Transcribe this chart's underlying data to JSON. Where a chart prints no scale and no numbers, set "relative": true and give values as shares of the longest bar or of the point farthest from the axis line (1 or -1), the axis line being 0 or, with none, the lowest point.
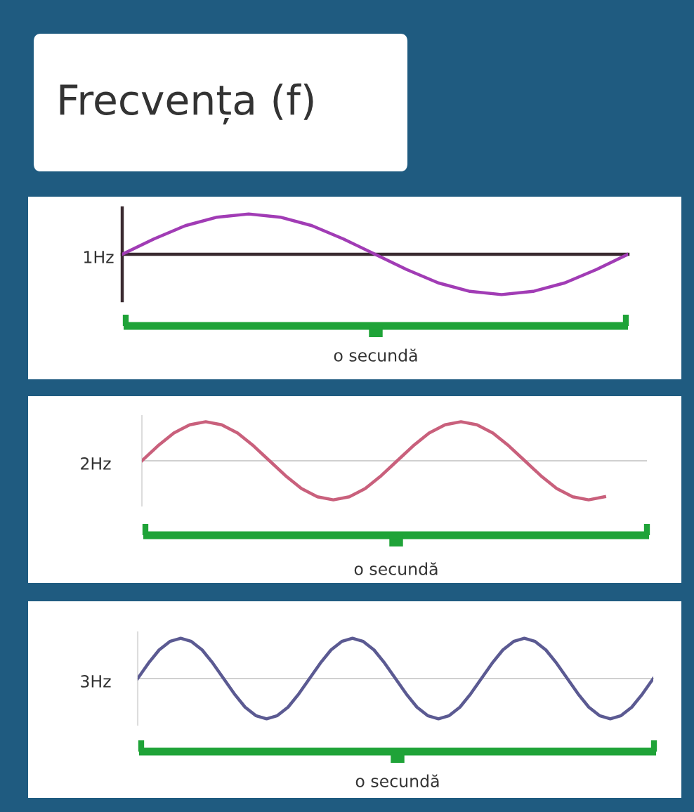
{
  "chart_data": [
    {
      "type": "line",
      "title": "Frecvența (f)",
      "ylabel": "1Hz",
      "relative": true,
      "annotations": [
        "o secundă"
      ],
      "categories": [
        null,
        null,
        null,
        null,
        null,
        null,
        null,
        null,
        null,
        null,
        null,
        null,
        null,
        null,
        null,
        null,
        null
      ],
      "series": [
        {
          "color": "#a13cb5",
          "values": [
            0,
            0.38,
            0.71,
            0.92,
            1,
            0.92,
            0.71,
            0.38,
            0,
            -0.38,
            -0.71,
            -0.92,
            -1,
            -0.92,
            -0.71,
            -0.38,
            0
          ]
        }
      ]
    },
    {
      "type": "line",
      "ylabel": "2Hz",
      "relative": true,
      "annotations": [
        "o secundă"
      ],
      "categories": [
        null,
        null,
        null,
        null,
        null,
        null,
        null,
        null,
        null,
        null,
        null,
        null,
        null,
        null,
        null,
        null,
        null,
        null,
        null,
        null,
        null,
        null,
        null,
        null,
        null,
        null,
        null,
        null,
        null,
        null
      ],
      "series": [
        {
          "color": "#c9607c",
          "values": [
            0,
            0.38,
            0.71,
            0.92,
            1,
            0.92,
            0.71,
            0.38,
            0,
            -0.38,
            -0.71,
            -0.92,
            -1,
            -0.92,
            -0.71,
            -0.38,
            0,
            0.38,
            0.71,
            0.92,
            1,
            0.92,
            0.71,
            0.38,
            0,
            -0.38,
            -0.71,
            -0.92,
            -1,
            -0.92
          ]
        }
      ]
    },
    {
      "type": "line",
      "ylabel": "3Hz",
      "relative": true,
      "annotations": [
        "o secundă"
      ],
      "categories": [
        null,
        null,
        null,
        null,
        null,
        null,
        null,
        null,
        null,
        null,
        null,
        null,
        null,
        null,
        null,
        null,
        null,
        null,
        null,
        null,
        null,
        null,
        null,
        null,
        null,
        null,
        null,
        null,
        null,
        null,
        null,
        null,
        null,
        null,
        null,
        null,
        null,
        null,
        null,
        null,
        null,
        null,
        null,
        null,
        null,
        null,
        null,
        null,
        null
      ],
      "series": [
        {
          "color": "#5b5a92",
          "values": [
            0,
            0.38,
            0.71,
            0.92,
            1,
            0.92,
            0.71,
            0.38,
            0,
            -0.38,
            -0.71,
            -0.92,
            -1,
            -0.92,
            -0.71,
            -0.38,
            0,
            0.38,
            0.71,
            0.92,
            1,
            0.92,
            0.71,
            0.38,
            0,
            -0.38,
            -0.71,
            -0.92,
            -1,
            -0.92,
            -0.71,
            -0.38,
            0,
            0.38,
            0.71,
            0.92,
            1,
            0.92,
            0.71,
            0.38,
            0,
            -0.38,
            -0.71,
            -0.92,
            -1,
            -0.92,
            -0.71,
            -0.38,
            0
          ]
        }
      ]
    }
  ]
}
